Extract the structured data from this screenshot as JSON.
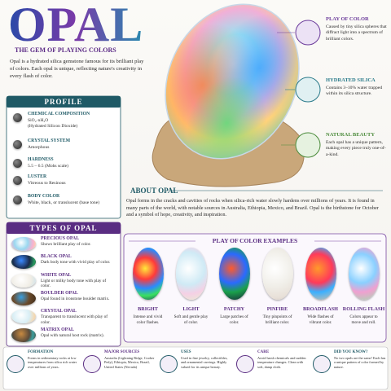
{
  "header": {
    "title": "OPAL",
    "subtitle": "THE GEM OF PLAYING COLORS",
    "intro": "Opal is a hydrated silica gemstone famous for its brilliant play of colors. Each opal is unique, reflecting nature's creativity in every flash of color."
  },
  "callouts": [
    {
      "title": "PLAY OF COLOR",
      "text": "Caused by tiny silica spheres that diffract light into a spectrum of brilliant colors."
    },
    {
      "title": "HYDRATED SILICA",
      "text": "Contains 3–10% water trapped within its silica structure."
    },
    {
      "title": "NATURAL BEAUTY",
      "text": "Each opal has a unique pattern, making every piece truly one-of-a-kind."
    }
  ],
  "profile": {
    "title": "PROFILE",
    "items": [
      {
        "label": "CHEMICAL COMPOSITION",
        "value": "SiO₂·nH₂O",
        "note": "(Hydrated Silicon Dioxide)"
      },
      {
        "label": "CRYSTAL SYSTEM",
        "value": "Amorphous"
      },
      {
        "label": "HARDNESS",
        "value": "5.5 – 6.5 (Mohs scale)"
      },
      {
        "label": "LUSTER",
        "value": "Vitreous to Resinous"
      },
      {
        "label": "BODY COLOR",
        "value": "White, black, or translucent (base tone)"
      }
    ]
  },
  "types": {
    "title": "TYPES OF OPAL",
    "items": [
      {
        "name": "PRECIOUS OPAL",
        "desc": "Shows brilliant play of color."
      },
      {
        "name": "BLACK OPAL",
        "desc": "Dark body tone with vivid play of color."
      },
      {
        "name": "WHITE OPAL",
        "desc": "Light or milky body tone with play of color."
      },
      {
        "name": "BOULDER OPAL",
        "desc": "Opal found in ironstone boulder matrix."
      },
      {
        "name": "CRYSTAL OPAL",
        "desc": "Transparent to translucent with play of color."
      },
      {
        "name": "MATRIX OPAL",
        "desc": "Opal with natural host rock (matrix)."
      }
    ]
  },
  "about": {
    "title": "ABOUT OPAL",
    "text": "Opal forms in the cracks and cavities of rocks when silica-rich water slowly hardens over millions of years. It is found in many parts of the world, with notable sources in Australia, Ethiopia, Mexico, and Brazil. Opal is the birthstone for October and a symbol of hope, creativity, and inspiration."
  },
  "examples": {
    "title": "PLAY OF COLOR EXAMPLES",
    "items": [
      {
        "name": "BRIGHT",
        "desc": "Intense and vivid color flashes."
      },
      {
        "name": "LIGHT",
        "desc": "Soft and gentle play of color."
      },
      {
        "name": "PATCHY",
        "desc": "Large patches of color."
      },
      {
        "name": "PINFIRE",
        "desc": "Tiny pinpoints of brilliant color."
      },
      {
        "name": "BROADFLASH",
        "desc": "Wide flashes of vibrant color."
      },
      {
        "name": "ROLLING FLASH",
        "desc": "Colors appear to move and roll."
      }
    ]
  },
  "footer": [
    {
      "title": "FORMATION",
      "text": "Forms in sedimentary rocks at low temperatures from silica rich water over millions of years."
    },
    {
      "title": "MAJOR SOURCES",
      "text": "Australia (Lightning Ridge, Coober Pedy), Ethiopia, Mexico, Brazil, United States (Nevada)"
    },
    {
      "title": "USES",
      "text": "Used in fine jewelry, collectibles, and ornamental carvings. Highly valued for its unique beauty."
    },
    {
      "title": "CARE",
      "text": "Avoid harsh chemicals and sudden temperature changes. Clean with soft, damp cloth."
    },
    {
      "title": "DID YOU KNOW?",
      "text": "No two opals are the same! Each has a unique pattern of color formed by nature."
    }
  ]
}
